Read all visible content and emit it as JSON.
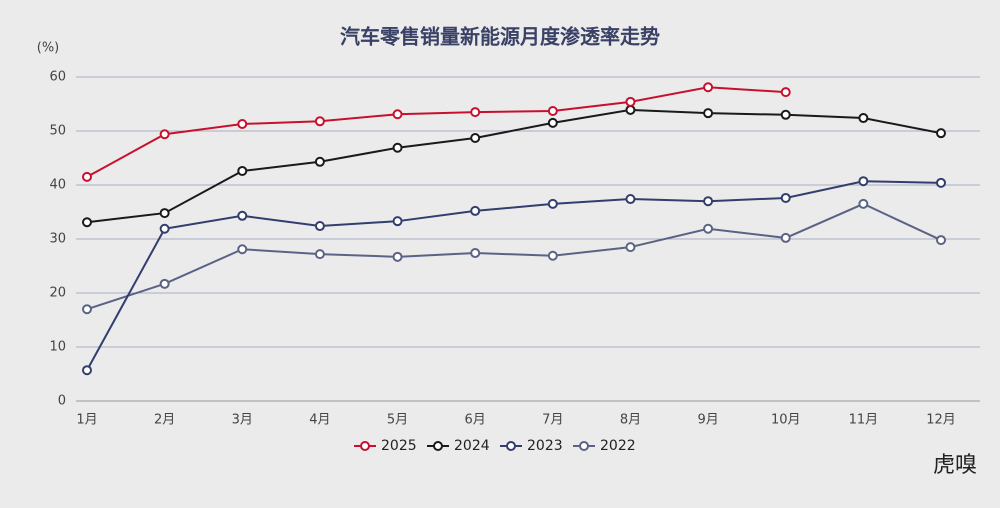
{
  "chart_data": {
    "type": "line",
    "title": "汽车零售销量新能源月度渗透率走势",
    "y_unit": "(%)",
    "categories": [
      "1月",
      "2月",
      "3月",
      "4月",
      "5月",
      "6月",
      "7月",
      "8月",
      "9月",
      "10月",
      "11月",
      "12月"
    ],
    "series": [
      {
        "name": "2025",
        "color": "#c8102e",
        "values": [
          41.5,
          49.4,
          51.3,
          51.8,
          53.1,
          53.5,
          53.7,
          55.4,
          58.1,
          57.2,
          null,
          null
        ]
      },
      {
        "name": "2024",
        "color": "#1a1a1a",
        "values": [
          33.1,
          34.8,
          42.6,
          44.3,
          46.9,
          48.7,
          51.5,
          53.9,
          53.3,
          53.0,
          52.4,
          49.6
        ]
      },
      {
        "name": "2023",
        "color": "#323e6e",
        "values": [
          5.7,
          31.9,
          34.3,
          32.4,
          33.3,
          35.2,
          36.5,
          37.4,
          37.0,
          37.6,
          40.7,
          40.4
        ]
      },
      {
        "name": "2022",
        "color": "#5a6385",
        "values": [
          17.0,
          21.7,
          28.1,
          27.2,
          26.7,
          27.4,
          26.9,
          28.5,
          31.9,
          30.2,
          36.5,
          29.8
        ]
      }
    ],
    "ylim": [
      0,
      60
    ],
    "yticks": [
      0,
      10,
      20,
      30,
      40,
      50,
      60
    ],
    "grid": true,
    "legend": "bottom"
  },
  "logo": "虎嗅"
}
